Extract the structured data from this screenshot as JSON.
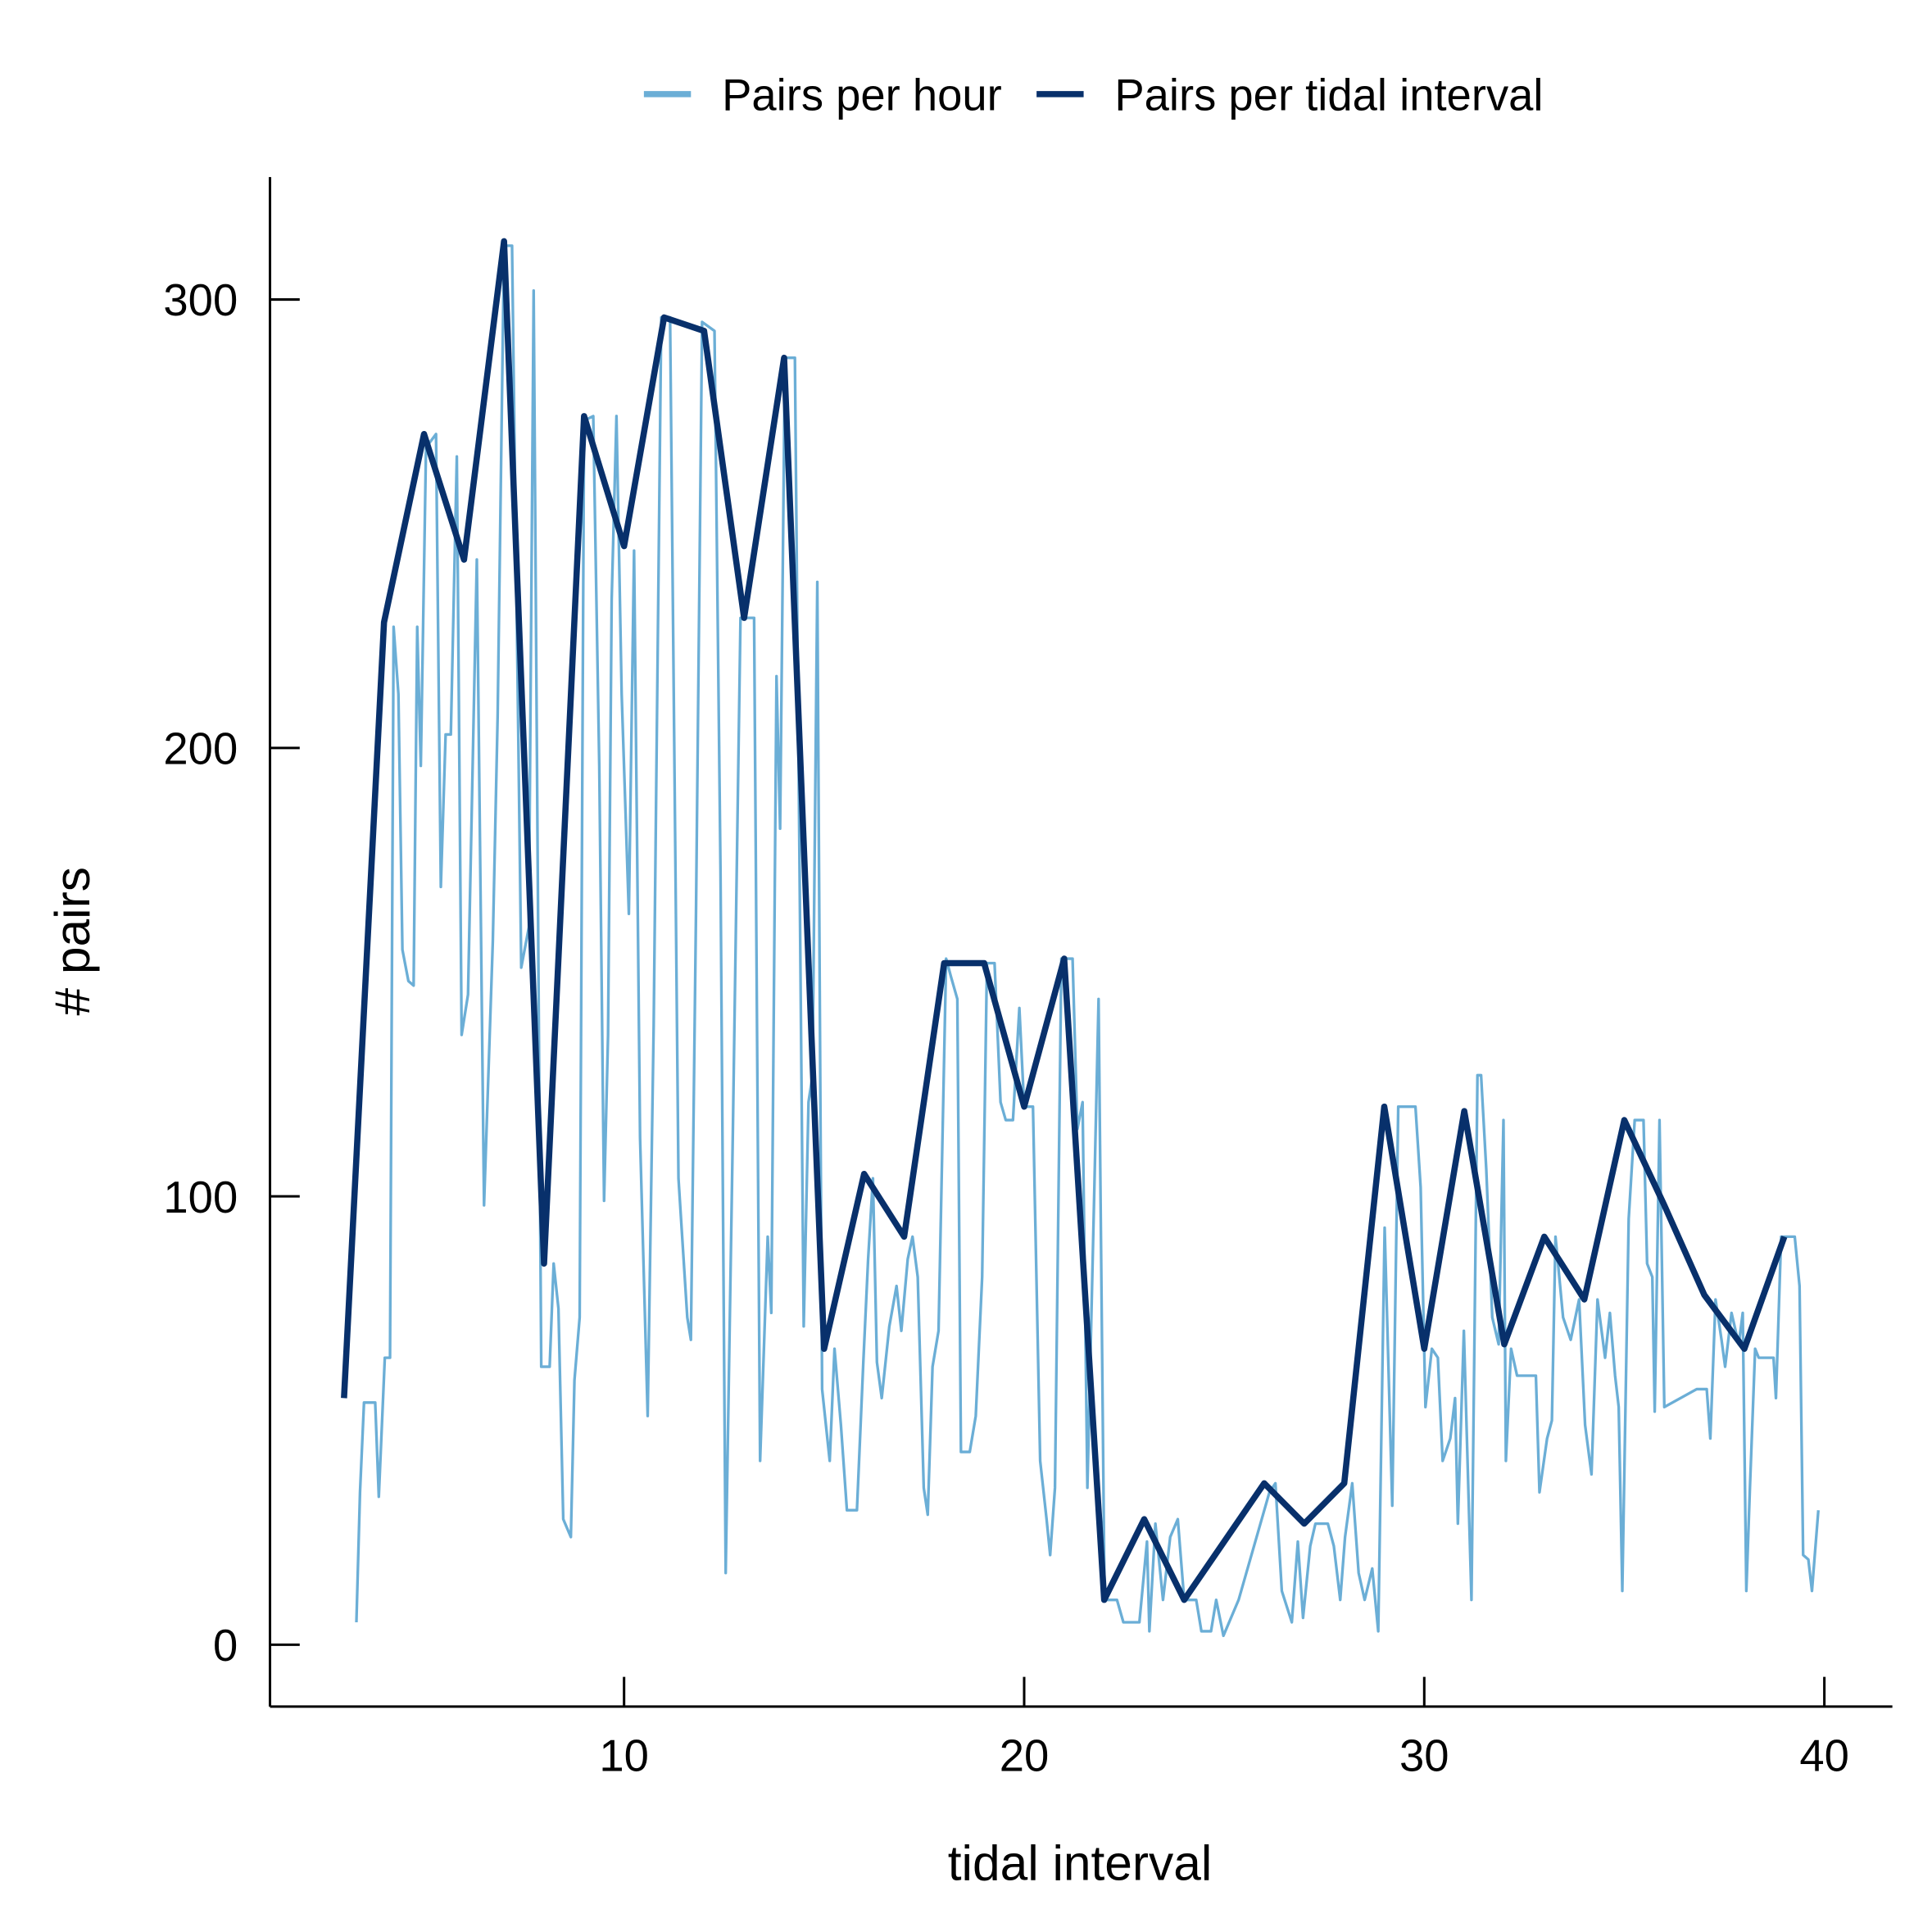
{
  "chart_data": {
    "type": "line",
    "x_label": "tidal interval",
    "y_label": "# pairs",
    "xlim": [
      1.15,
      41.7
    ],
    "ylim": [
      -13.8,
      327.3
    ],
    "xticks": [
      10,
      20,
      30,
      40
    ],
    "yticks": [
      0,
      100,
      200,
      300
    ],
    "legend": "top",
    "series": [
      {
        "name": "Pairs per hour",
        "color": "#6baed6",
        "width": 2.2,
        "x": [
          3.31,
          3.4,
          3.5,
          3.78,
          3.87,
          4.02,
          4.15,
          4.24,
          4.36,
          4.46,
          4.61,
          4.74,
          4.83,
          4.92,
          5.05,
          5.3,
          5.42,
          5.54,
          5.67,
          5.82,
          5.94,
          6.1,
          6.32,
          6.5,
          6.72,
          6.84,
          7.0,
          7.2,
          7.43,
          7.62,
          7.74,
          7.93,
          8.14,
          8.24,
          8.36,
          8.48,
          8.67,
          8.76,
          8.89,
          9.0,
          9.23,
          9.38,
          9.5,
          9.6,
          9.69,
          9.81,
          9.94,
          10.12,
          10.25,
          10.4,
          10.59,
          10.74,
          10.93,
          11.15,
          11.36,
          11.58,
          11.67,
          11.8,
          11.95,
          12.26,
          12.41,
          12.54,
          12.72,
          12.91,
          13.25,
          13.4,
          13.59,
          13.68,
          13.81,
          13.9,
          14.02,
          14.27,
          14.49,
          14.61,
          14.71,
          14.83,
          14.95,
          15.14,
          15.26,
          15.42,
          15.57,
          15.82,
          15.98,
          16.1,
          16.22,
          16.32,
          16.44,
          16.63,
          16.81,
          16.93,
          17.09,
          17.21,
          17.34,
          17.49,
          17.59,
          17.71,
          17.86,
          18.05,
          18.17,
          18.33,
          18.42,
          18.64,
          18.79,
          18.95,
          19.07,
          19.26,
          19.41,
          19.54,
          19.72,
          19.88,
          20.0,
          20.22,
          20.4,
          20.56,
          20.65,
          20.77,
          20.93,
          21.21,
          21.33,
          21.46,
          21.58,
          21.76,
          21.86,
          22.01,
          22.32,
          22.48,
          22.88,
          23.07,
          23.13,
          23.28,
          23.47,
          23.65,
          23.84,
          24.0,
          24.3,
          24.43,
          24.67,
          24.8,
          24.98,
          25.36,
          26.13,
          26.28,
          26.44,
          26.69,
          26.84,
          26.97,
          27.15,
          27.28,
          27.59,
          27.74,
          27.9,
          28.02,
          28.2,
          28.36,
          28.51,
          28.7,
          28.85,
          29.01,
          29.2,
          29.35,
          29.78,
          29.91,
          30.03,
          30.19,
          30.34,
          30.46,
          30.65,
          30.77,
          30.84,
          30.99,
          31.18,
          31.33,
          31.42,
          31.55,
          31.7,
          31.86,
          31.98,
          32.04,
          32.17,
          32.32,
          32.79,
          32.88,
          33.07,
          33.19,
          33.28,
          33.47,
          33.66,
          33.87,
          34.02,
          34.18,
          34.33,
          34.52,
          34.64,
          34.77,
          34.86,
          34.95,
          35.11,
          35.26,
          35.48,
          35.57,
          35.7,
          35.76,
          35.88,
          36.0,
          36.81,
          37.06,
          37.15,
          37.28,
          37.43,
          37.52,
          37.68,
          37.86,
          37.96,
          38.05,
          38.14,
          38.27,
          38.36,
          38.73,
          38.79,
          38.92,
          39.26,
          39.38,
          39.47,
          39.6,
          39.69,
          39.85
        ],
        "values": [
          5,
          34,
          54,
          54,
          33,
          64,
          64,
          227,
          212,
          155,
          148,
          147,
          227,
          196,
          267,
          270,
          169,
          203,
          203,
          265,
          136,
          145,
          242,
          98,
          157,
          207,
          312,
          312,
          151,
          160,
          302,
          62,
          62,
          85,
          75,
          28,
          24,
          59,
          73,
          273,
          274,
          196,
          99,
          136,
          233,
          274,
          212,
          163,
          244,
          113,
          51,
          138,
          296,
          296,
          104,
          73,
          68,
          165,
          295,
          293,
          173,
          16,
          115,
          229,
          229,
          41,
          91,
          74,
          216,
          182,
          287,
          287,
          71,
          121,
          127,
          237,
          57,
          41,
          66,
          49,
          30,
          30,
          63,
          86,
          104,
          63,
          55,
          71,
          80,
          70,
          86,
          91,
          82,
          35,
          29,
          62,
          70,
          153,
          149,
          144,
          43,
          43,
          51,
          82,
          152,
          152,
          121,
          117,
          117,
          142,
          120,
          120,
          41,
          28,
          20,
          35,
          153,
          153,
          115,
          121,
          35,
          104,
          144,
          10,
          10,
          5,
          5,
          23,
          3,
          27,
          10,
          24,
          28,
          10,
          10,
          3,
          3,
          10,
          2,
          10,
          34,
          36,
          12,
          5,
          23,
          6,
          22,
          27,
          27,
          22,
          10,
          24,
          36,
          16,
          10,
          17,
          3,
          93,
          31,
          120,
          120,
          102,
          53,
          66,
          64,
          41,
          46,
          55,
          27,
          70,
          10,
          127,
          127,
          106,
          73,
          67,
          117,
          41,
          66,
          60,
          60,
          34,
          46,
          50,
          91,
          73,
          68,
          77,
          49,
          38,
          77,
          64,
          74,
          60,
          53,
          12,
          95,
          117,
          117,
          85,
          82,
          52,
          117,
          53,
          57,
          57,
          46,
          77,
          68,
          62,
          74,
          67,
          74,
          12,
          35,
          66,
          64,
          64,
          55,
          91,
          91,
          80,
          20,
          19,
          12,
          30
        ]
      },
      {
        "name": "Pairs per tidal interval",
        "color": "#08306b",
        "width": 5,
        "x": [
          3,
          4,
          5,
          6,
          7,
          8,
          9,
          10,
          11,
          12,
          13,
          14,
          15,
          16,
          17,
          18,
          19,
          20,
          21,
          22,
          23,
          24,
          25,
          26,
          27,
          28,
          29,
          30,
          31,
          32,
          33,
          34,
          35,
          36,
          37,
          38,
          39
        ],
        "values": [
          55,
          228,
          270,
          242,
          313,
          85,
          274,
          245,
          296,
          293,
          229,
          287,
          66,
          105,
          91,
          152,
          152,
          120,
          153,
          10,
          28,
          10,
          23,
          36,
          27,
          36,
          120,
          66,
          119,
          67,
          91,
          77,
          117,
          98,
          78,
          66,
          91
        ]
      }
    ]
  }
}
